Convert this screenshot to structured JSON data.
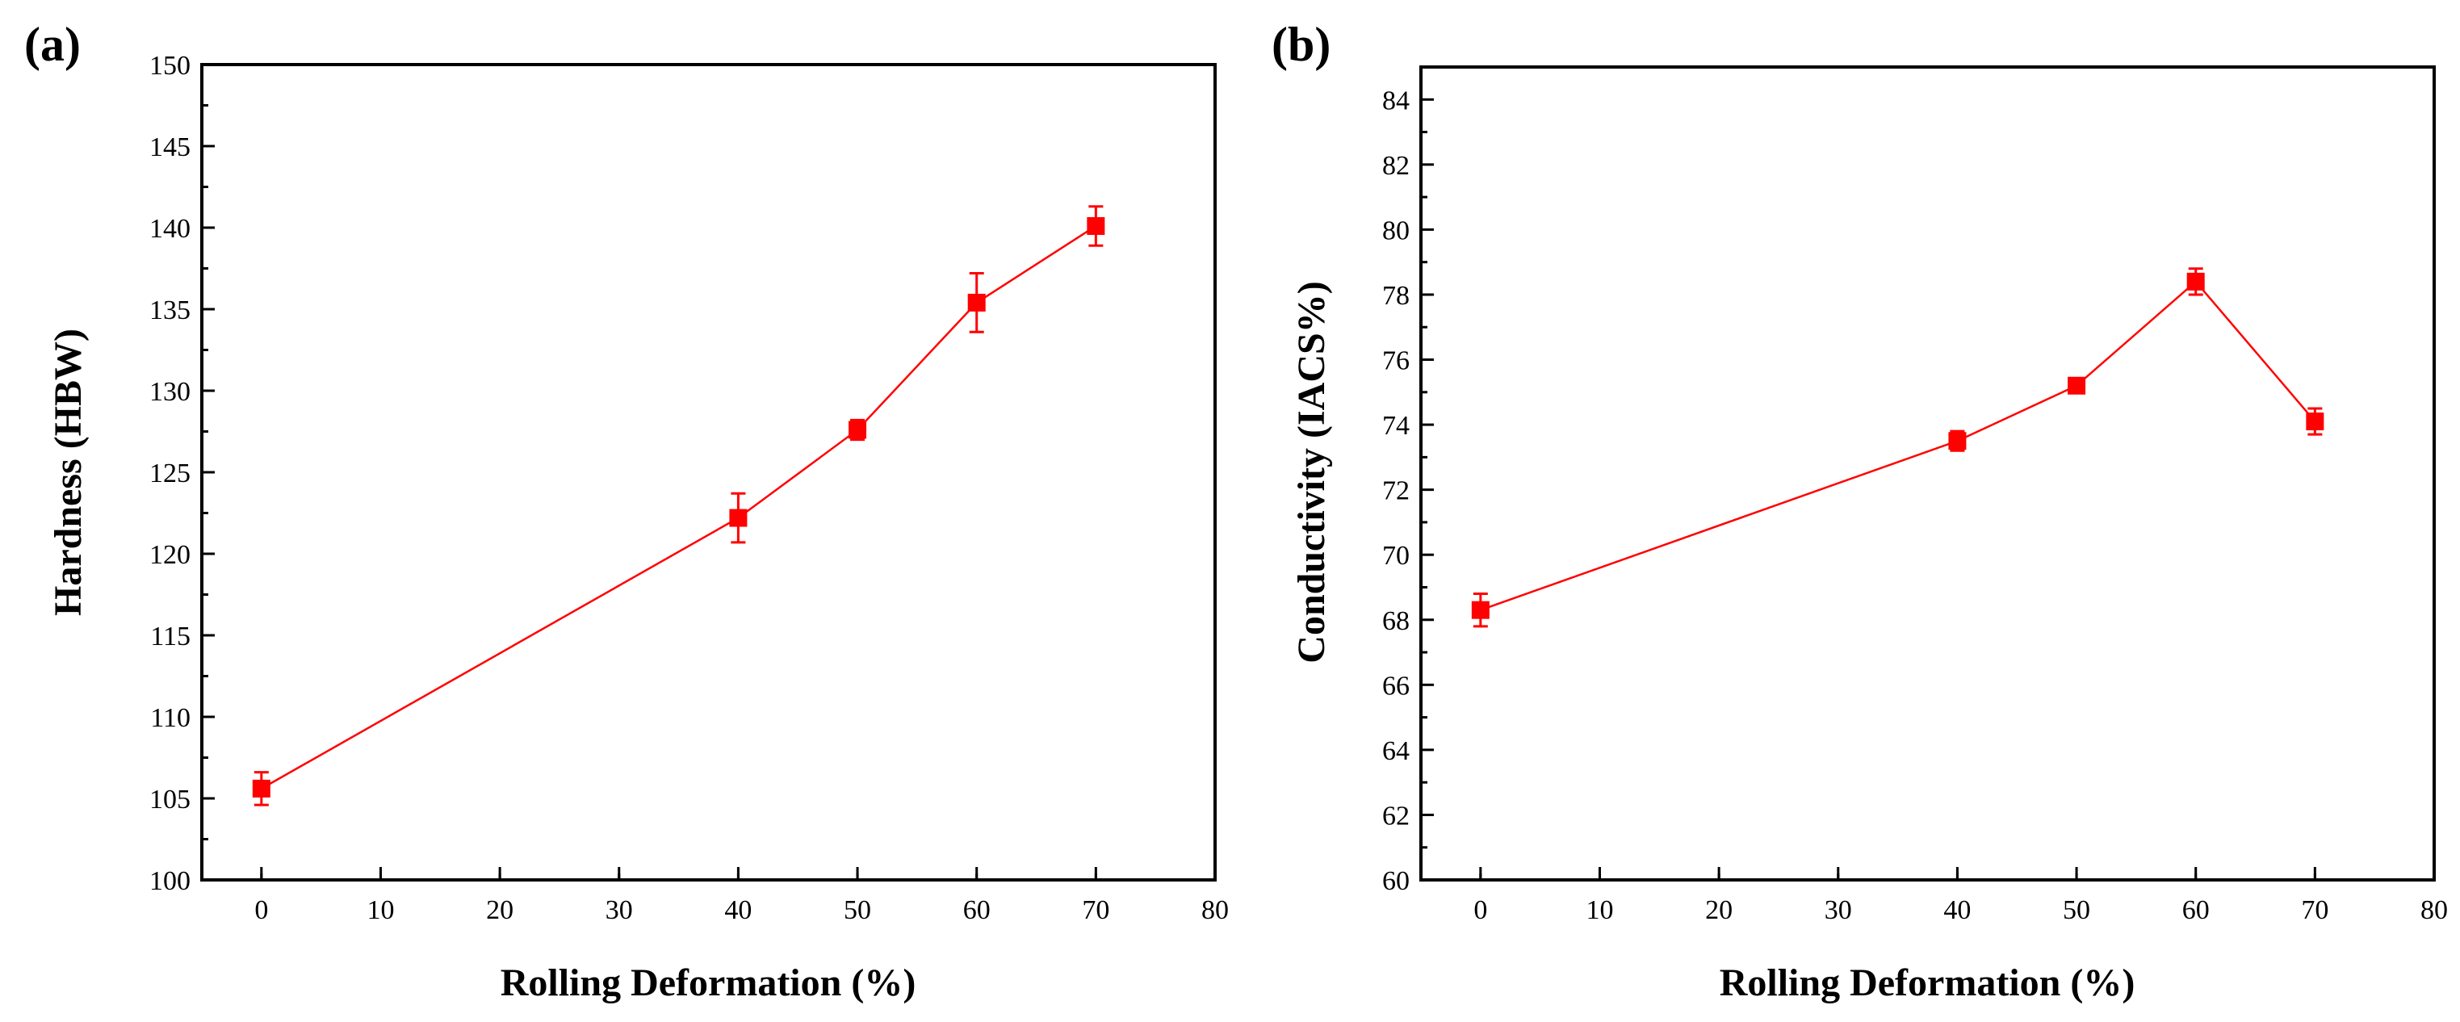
{
  "chart_data": [
    {
      "panel": "(a)",
      "type": "line",
      "xlabel": "Rolling Deformation (%)",
      "ylabel": "Hardness (HBW)",
      "xlim": [
        -5,
        80
      ],
      "ylim": [
        100,
        150
      ],
      "xticks": [
        0,
        10,
        20,
        30,
        40,
        50,
        60,
        70,
        80
      ],
      "yticks": [
        100,
        105,
        110,
        115,
        120,
        125,
        130,
        135,
        140,
        145,
        150
      ],
      "series": [
        {
          "name": "Hardness",
          "color": "#ff0000",
          "marker": "square",
          "x": [
            0,
            40,
            50,
            60,
            70
          ],
          "y": [
            105.6,
            122.2,
            127.6,
            135.4,
            140.1
          ],
          "yerr": [
            1.0,
            1.5,
            0.6,
            1.8,
            1.2
          ]
        }
      ]
    },
    {
      "panel": "(b)",
      "type": "line",
      "xlabel": "Rolling Deformation (%)",
      "ylabel": "Conductivity (IACS%)",
      "xlim": [
        -5,
        80
      ],
      "ylim": [
        60,
        85
      ],
      "xticks": [
        0,
        10,
        20,
        30,
        40,
        50,
        60,
        70,
        80
      ],
      "yticks": [
        60,
        62,
        64,
        66,
        68,
        70,
        72,
        74,
        76,
        78,
        80,
        82,
        84
      ],
      "series": [
        {
          "name": "Conductivity",
          "color": "#ff0000",
          "marker": "square",
          "x": [
            0,
            40,
            50,
            60,
            70
          ],
          "y": [
            68.3,
            73.5,
            75.2,
            78.4,
            74.1
          ],
          "yerr": [
            0.5,
            0.3,
            0.2,
            0.4,
            0.4
          ]
        }
      ]
    }
  ]
}
